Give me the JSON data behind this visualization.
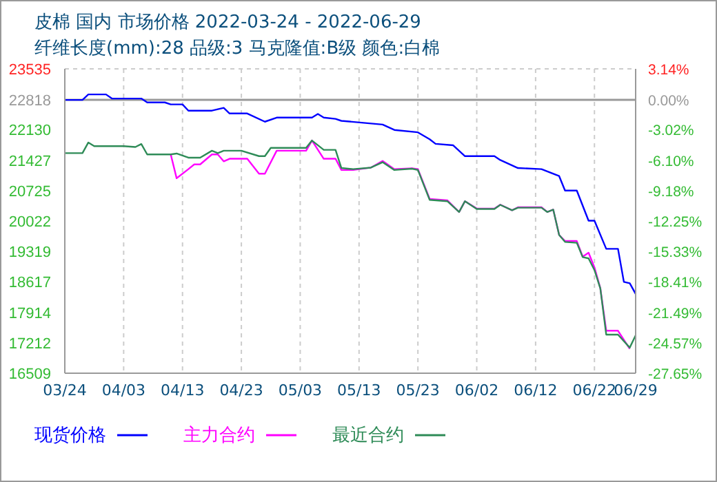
{
  "chart_data": {
    "type": "line",
    "title": "皮棉 国内 市场价格 2022-03-24 - 2022-06-29",
    "subtitle": "纤维长度(mm):28 品级:3 马克隆值:B级 颜色:白棉",
    "xlim": [
      "2022-03-24",
      "2022-06-29"
    ],
    "xticks": [
      {
        "value": "2022-03-24",
        "label": "03/24"
      },
      {
        "value": "2022-04-03",
        "label": "04/03"
      },
      {
        "value": "2022-04-13",
        "label": "04/13"
      },
      {
        "value": "2022-04-23",
        "label": "04/23"
      },
      {
        "value": "2022-05-03",
        "label": "05/03"
      },
      {
        "value": "2022-05-13",
        "label": "05/13"
      },
      {
        "value": "2022-05-23",
        "label": "05/23"
      },
      {
        "value": "2022-06-02",
        "label": "06/02"
      },
      {
        "value": "2022-06-12",
        "label": "06/12"
      },
      {
        "value": "2022-06-22",
        "label": "06/22"
      },
      {
        "value": "2022-06-29",
        "label": "06/29"
      }
    ],
    "ylim": [
      16509,
      23535
    ],
    "yticks": [
      16509,
      17212,
      17914,
      18617,
      19319,
      20022,
      20725,
      21427,
      22130,
      22818,
      23535
    ],
    "y2lim": [
      -27.65,
      3.14
    ],
    "y2ticks": [
      {
        "value": -27.65,
        "label": "-27.65%"
      },
      {
        "value": -24.57,
        "label": "-24.57%"
      },
      {
        "value": -21.49,
        "label": "-21.49%"
      },
      {
        "value": -18.41,
        "label": "-18.41%"
      },
      {
        "value": -15.33,
        "label": "-15.33%"
      },
      {
        "value": -12.25,
        "label": "-12.25%"
      },
      {
        "value": -9.18,
        "label": "-9.18%"
      },
      {
        "value": -6.1,
        "label": "-6.10%"
      },
      {
        "value": -3.02,
        "label": "-3.02%"
      },
      {
        "value": 0,
        "label": "0.00%"
      },
      {
        "value": 3.14,
        "label": "3.14%"
      }
    ],
    "ref_lines": [
      {
        "axis": "y2",
        "value": 0,
        "color": "#999999",
        "line_style": "solid"
      }
    ],
    "grid": true,
    "legend": "bottom",
    "marker": "none",
    "line_style": "solid",
    "series": [
      {
        "name": "现货价格",
        "color": "#0000ff",
        "x": [
          "2022-03-24",
          "2022-03-27",
          "2022-03-28",
          "2022-03-31",
          "2022-04-01",
          "2022-04-06",
          "2022-04-07",
          "2022-04-10",
          "2022-04-11",
          "2022-04-13",
          "2022-04-14",
          "2022-04-18",
          "2022-04-20",
          "2022-04-21",
          "2022-04-24",
          "2022-04-27",
          "2022-04-29",
          "2022-05-05",
          "2022-05-06",
          "2022-05-07",
          "2022-05-09",
          "2022-05-10",
          "2022-05-17",
          "2022-05-19",
          "2022-05-23",
          "2022-05-25",
          "2022-05-26",
          "2022-05-29",
          "2022-05-31",
          "2022-06-05",
          "2022-06-06",
          "2022-06-09",
          "2022-06-13",
          "2022-06-16",
          "2022-06-17",
          "2022-06-19",
          "2022-06-21",
          "2022-06-22",
          "2022-06-24",
          "2022-06-26",
          "2022-06-27",
          "2022-06-28",
          "2022-06-29"
        ],
        "values": [
          22818,
          22818,
          22945,
          22945,
          22850,
          22850,
          22760,
          22760,
          22715,
          22715,
          22570,
          22570,
          22635,
          22505,
          22505,
          22315,
          22410,
          22410,
          22495,
          22410,
          22380,
          22335,
          22250,
          22125,
          22070,
          21910,
          21805,
          21770,
          21520,
          21520,
          21430,
          21245,
          21220,
          21060,
          20725,
          20725,
          20030,
          20030,
          19380,
          19380,
          18617,
          18585,
          18340
        ]
      },
      {
        "name": "主力合约",
        "color": "#ff00ff",
        "x": [
          "2022-04-11",
          "2022-04-12",
          "2022-04-14",
          "2022-04-15",
          "2022-04-16",
          "2022-04-18",
          "2022-04-19",
          "2022-04-20",
          "2022-04-21",
          "2022-04-24",
          "2022-04-26",
          "2022-04-27",
          "2022-04-29",
          "2022-05-04",
          "2022-05-05",
          "2022-05-07",
          "2022-05-09",
          "2022-05-10",
          "2022-05-12",
          "2022-05-15",
          "2022-05-17",
          "2022-05-19",
          "2022-05-22",
          "2022-05-23",
          "2022-05-25",
          "2022-05-28",
          "2022-05-30",
          "2022-05-31",
          "2022-06-02",
          "2022-06-05",
          "2022-06-06",
          "2022-06-08",
          "2022-06-09",
          "2022-06-13",
          "2022-06-14",
          "2022-06-15",
          "2022-06-16",
          "2022-06-17",
          "2022-06-19",
          "2022-06-20",
          "2022-06-21",
          "2022-06-22",
          "2022-06-23",
          "2022-06-24",
          "2022-06-26",
          "2022-06-28"
        ],
        "values": [
          21560,
          21010,
          21220,
          21330,
          21330,
          21560,
          21560,
          21400,
          21460,
          21460,
          21115,
          21115,
          21645,
          21645,
          21880,
          21460,
          21460,
          21200,
          21200,
          21255,
          21410,
          21220,
          21240,
          21220,
          20530,
          20500,
          20230,
          20480,
          20310,
          20310,
          20400,
          20270,
          20340,
          20340,
          20230,
          20285,
          19700,
          19560,
          19560,
          19200,
          19290,
          18950,
          18470,
          17490,
          17490,
          17070
        ]
      },
      {
        "name": "最近合约",
        "color": "#2e8b57",
        "x": [
          "2022-03-24",
          "2022-03-27",
          "2022-03-28",
          "2022-03-29",
          "2022-04-03",
          "2022-04-05",
          "2022-04-06",
          "2022-04-07",
          "2022-04-11",
          "2022-04-12",
          "2022-04-14",
          "2022-04-16",
          "2022-04-18",
          "2022-04-19",
          "2022-04-20",
          "2022-04-23",
          "2022-04-26",
          "2022-04-27",
          "2022-04-28",
          "2022-05-04",
          "2022-05-05",
          "2022-05-07",
          "2022-05-09",
          "2022-05-10",
          "2022-05-12",
          "2022-05-15",
          "2022-05-17",
          "2022-05-19",
          "2022-05-22",
          "2022-05-23",
          "2022-05-25",
          "2022-05-28",
          "2022-05-30",
          "2022-05-31",
          "2022-06-02",
          "2022-06-05",
          "2022-06-06",
          "2022-06-08",
          "2022-06-09",
          "2022-06-13",
          "2022-06-14",
          "2022-06-15",
          "2022-06-16",
          "2022-06-17",
          "2022-06-19",
          "2022-06-20",
          "2022-06-21",
          "2022-06-22",
          "2022-06-23",
          "2022-06-24",
          "2022-06-26",
          "2022-06-28",
          "2022-06-29"
        ],
        "values": [
          21590,
          21590,
          21835,
          21750,
          21750,
          21730,
          21800,
          21560,
          21560,
          21580,
          21485,
          21485,
          21645,
          21590,
          21645,
          21645,
          21520,
          21520,
          21710,
          21710,
          21880,
          21665,
          21665,
          21245,
          21220,
          21255,
          21380,
          21200,
          21230,
          21200,
          20510,
          20480,
          20230,
          20480,
          20300,
          20300,
          20395,
          20270,
          20330,
          20330,
          20230,
          20285,
          19700,
          19540,
          19520,
          19190,
          19160,
          18890,
          18465,
          17400,
          17400,
          17100,
          17385
        ]
      }
    ]
  }
}
